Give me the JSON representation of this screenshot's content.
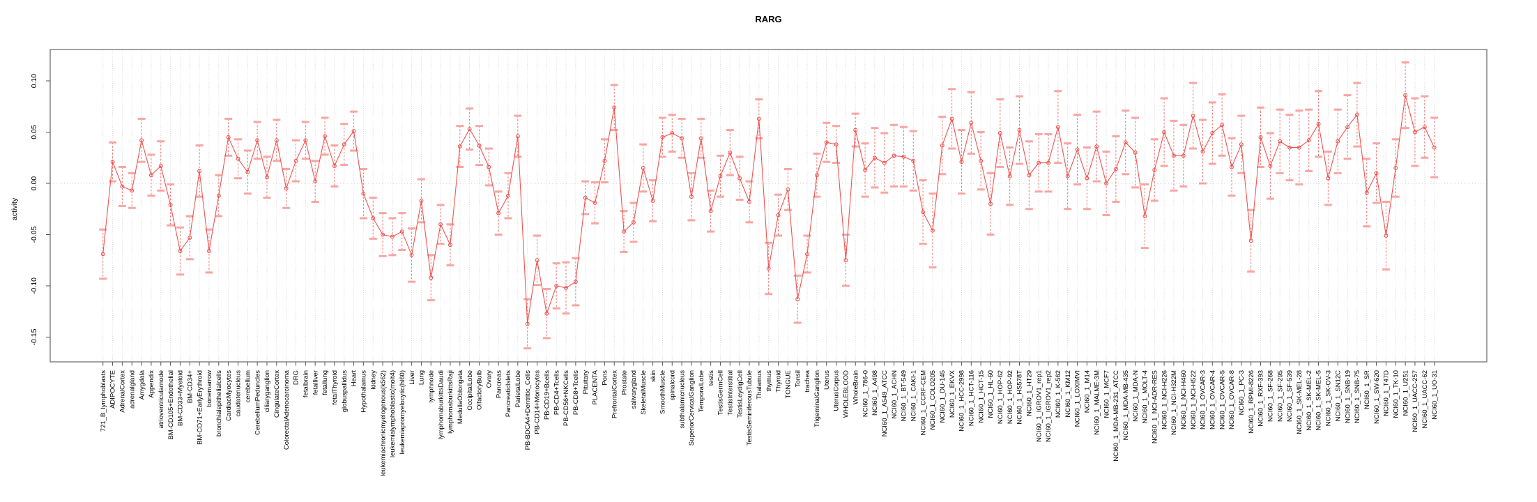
{
  "title": "RARG",
  "ylabel": "activity",
  "chart_data": {
    "type": "line",
    "title": "RARG",
    "xlabel": "",
    "ylabel": "activity",
    "ylim": [
      -0.174,
      0.131
    ],
    "yticks": [
      0.1,
      0.05,
      0.0,
      -0.05,
      -0.1,
      -0.15
    ],
    "grid": "vertical dashed gridline per category; dotted zero line; full box frame",
    "legend": "none",
    "marker": "open-circle",
    "series_name": "RARG activity with confidence intervals",
    "colors": {
      "line": "#f0524f",
      "error_bar": "#f0524f",
      "error_cap": "#f7a6a3",
      "grid": "#dcdcdc",
      "zero_line": "#cccccc",
      "frame": "#828282",
      "tick": "#555555",
      "text": "#000000"
    },
    "categories": [
      "721_B_lymphoblasts",
      "ADIPOCYTE",
      "AdrenalCortex",
      "adrenalgland",
      "Amygdala",
      "Appendix",
      "atrioventricularnode",
      "BM-CD105+Endothelial",
      "BM-CD33+Myeloid",
      "BM-CD34+",
      "BM-CD71+EarlyErythroid",
      "bonemarrow",
      "bronchialepithelialcells",
      "CardiacMyocytes",
      "caudatenucleus",
      "cerebellum",
      "CerebellumPeduncles",
      "ciliaryganglion",
      "CingulateCortex",
      "ColorectalAdenocarcinoma",
      "DRG",
      "fetalbrain",
      "fetalliver",
      "fetallung",
      "fetalThyroid",
      "globuspallidus",
      "Heart",
      "Hypothalamus",
      "kidney",
      "leukemiachronicmyelogenous(k562)",
      "leukemialymphoblastic(molt4)",
      "leukemiapromyelocytic(hl60)",
      "Liver",
      "Lung",
      "lymphnode",
      "lymphomaburkittsDaudi",
      "lymphomaburkittsRaji",
      "MedullaOblongata",
      "OccipitalLobe",
      "OlfactoryBulb",
      "Ovary",
      "Pancreas",
      "PancreaticIslets",
      "ParietalLobe",
      "PB-BDCA4+Dentritic_Cells",
      "PB-CD14+Monocytes",
      "PB-CD19+Bcells",
      "PB-CD4+Tcells",
      "PB-CD56+NKCells",
      "PB-CD8+Tcells",
      "Pituitary",
      "PLACENTA",
      "Pons",
      "PrefrontalCortex",
      "Prostate",
      "salivarygland",
      "SkeletalMuscle",
      "skin",
      "SmoothMuscle",
      "spinalcord",
      "subthalamicnucleus",
      "SuperiorCervicalGanglion",
      "TemporalLobe",
      "testis",
      "TestisGermCell",
      "TestisInterstitial",
      "TestisLeydigCell",
      "TestisSeminiferousTubule",
      "Thalamus",
      "thymus",
      "Thyroid",
      "TONGUE",
      "Tonsil",
      "trachea",
      "TrigeminalGanglion",
      "Uterus",
      "UterusCorpus",
      "WHOLEBLOOD",
      "WholeBrain",
      "NCI60_1_786-0",
      "NCI60_1_A498",
      "NCI60_1_A549_ATCC",
      "NCI60_1_ACHN",
      "NCI60_1_BT-549",
      "NCI60_1_CAKI-1",
      "NCI60_1_CCRF-CEM",
      "NCI60_1_COLO205",
      "NCI60_1_DU-145",
      "NCI60_1_EKVX",
      "NCI60_1_HCC-2998",
      "NCI60_1_HCT-116",
      "NCI60_1_HCT-15",
      "NCI60_1_HL-60",
      "NCI60_1_HOP-62",
      "NCI60_1_HOP-92",
      "NCI60_1_HS578T",
      "NCI60_1_HT29",
      "NCI60_1_IGROV1_rep1",
      "NCI60_1_IGROV1_rep2",
      "NCI60_1_K-562",
      "NCI60_1_KM12",
      "NCI60_1_LOXIMVI",
      "NCI60_1_M14",
      "NCI60_1_MALME-3M",
      "NCI60_1_MCF7",
      "NCI60_1_MDA-MB-231_ATCC",
      "NCI60_1_MDA-MB-435",
      "NCI60_1_MDA-N",
      "NCI60_1_MOLT-4",
      "NCI60_1_NCI-ADR-RES",
      "NCI60_1_NCI-H226",
      "NCI60_1_NCI-H322M",
      "NCI60_1_NCI-H460",
      "NCI60_1_NCI-H522",
      "NCI60_1_OVCAR-3",
      "NCI60_1_OVCAR-4",
      "NCI60_1_OVCAR-5",
      "NCI60_1_OVCAR-8",
      "NCI60_1_PC-3",
      "NCI60_1_RPMI-8226",
      "NCI60_1_RXF-393",
      "NCI60_1_SF-268",
      "NCI60_1_SF-295",
      "NCI60_1_SF-539",
      "NCI60_1_SK-MEL-28",
      "NCI60_1_SK-MEL-2",
      "NCI60_1_SK-MEL-5",
      "NCI60_1_SK-OV-3",
      "NCI60_1_SN12C",
      "NCI60_1_SNB-19",
      "NCI60_1_SNB-75",
      "NCI60_1_SR",
      "NCI60_1_SW-620",
      "NCI60_1_T47D",
      "NCI60_1_TK-10",
      "NCI60_1_U251",
      "NCI60_1_UACC-257",
      "NCI60_1_UACC-62",
      "NCI60_1_UO-31"
    ],
    "values": [
      -0.069,
      0.021,
      -0.003,
      -0.007,
      0.042,
      0.008,
      0.017,
      -0.021,
      -0.066,
      -0.053,
      0.012,
      -0.066,
      -0.012,
      0.045,
      0.024,
      0.011,
      0.042,
      0.006,
      0.042,
      -0.005,
      0.022,
      0.042,
      0.002,
      0.046,
      0.017,
      0.038,
      0.051,
      -0.01,
      -0.034,
      -0.05,
      -0.052,
      -0.047,
      -0.07,
      -0.017,
      -0.092,
      -0.04,
      -0.06,
      0.036,
      0.053,
      0.037,
      0.016,
      -0.029,
      -0.012,
      0.046,
      -0.137,
      -0.075,
      -0.127,
      -0.1,
      -0.102,
      -0.096,
      -0.014,
      -0.019,
      0.022,
      0.074,
      -0.047,
      -0.038,
      0.015,
      -0.017,
      0.045,
      0.049,
      0.044,
      -0.013,
      0.044,
      -0.027,
      0.007,
      0.03,
      0.005,
      -0.018,
      0.063,
      -0.083,
      -0.031,
      -0.006,
      -0.113,
      -0.069,
      0.008,
      0.04,
      0.038,
      -0.075,
      0.052,
      0.013,
      0.025,
      0.02,
      0.027,
      0.026,
      0.022,
      -0.028,
      -0.046,
      0.037,
      0.063,
      0.021,
      0.059,
      0.022,
      -0.02,
      0.049,
      0.007,
      0.052,
      0.008,
      0.02,
      0.02,
      0.055,
      0.007,
      0.033,
      0.005,
      0.036,
      0.0,
      0.014,
      0.04,
      0.03,
      -0.032,
      0.013,
      0.05,
      0.027,
      0.027,
      0.066,
      0.031,
      0.049,
      0.057,
      0.016,
      0.038,
      -0.056,
      0.045,
      0.017,
      0.041,
      0.035,
      0.035,
      0.042,
      0.058,
      0.005,
      0.041,
      0.055,
      0.067,
      -0.009,
      0.01,
      -0.051,
      0.015,
      0.086,
      0.05,
      0.055,
      0.035
    ],
    "errors": [
      0.024,
      0.019,
      0.019,
      0.017,
      0.021,
      0.02,
      0.024,
      0.02,
      0.023,
      0.021,
      0.025,
      0.021,
      0.02,
      0.018,
      0.019,
      0.021,
      0.018,
      0.02,
      0.02,
      0.019,
      0.02,
      0.018,
      0.02,
      0.018,
      0.02,
      0.02,
      0.019,
      0.024,
      0.02,
      0.021,
      0.018,
      0.018,
      0.026,
      0.021,
      0.022,
      0.019,
      0.02,
      0.02,
      0.02,
      0.019,
      0.018,
      0.021,
      0.022,
      0.02,
      0.024,
      0.024,
      0.024,
      0.022,
      0.025,
      0.023,
      0.016,
      0.02,
      0.021,
      0.022,
      0.02,
      0.019,
      0.023,
      0.02,
      0.019,
      0.018,
      0.019,
      0.023,
      0.019,
      0.02,
      0.02,
      0.022,
      0.021,
      0.02,
      0.019,
      0.025,
      0.02,
      0.02,
      0.023,
      0.018,
      0.021,
      0.019,
      0.018,
      0.025,
      0.016,
      0.026,
      0.029,
      0.029,
      0.03,
      0.029,
      0.029,
      0.031,
      0.036,
      0.028,
      0.029,
      0.031,
      0.03,
      0.028,
      0.03,
      0.033,
      0.028,
      0.033,
      0.033,
      0.028,
      0.028,
      0.035,
      0.032,
      0.034,
      0.03,
      0.034,
      0.031,
      0.032,
      0.031,
      0.034,
      0.031,
      0.03,
      0.033,
      0.034,
      0.03,
      0.032,
      0.031,
      0.03,
      0.03,
      0.028,
      0.028,
      0.03,
      0.029,
      0.032,
      0.031,
      0.032,
      0.036,
      0.03,
      0.032,
      0.026,
      0.031,
      0.031,
      0.031,
      0.033,
      0.029,
      0.033,
      0.028,
      0.032,
      0.033,
      0.03,
      0.029
    ]
  }
}
